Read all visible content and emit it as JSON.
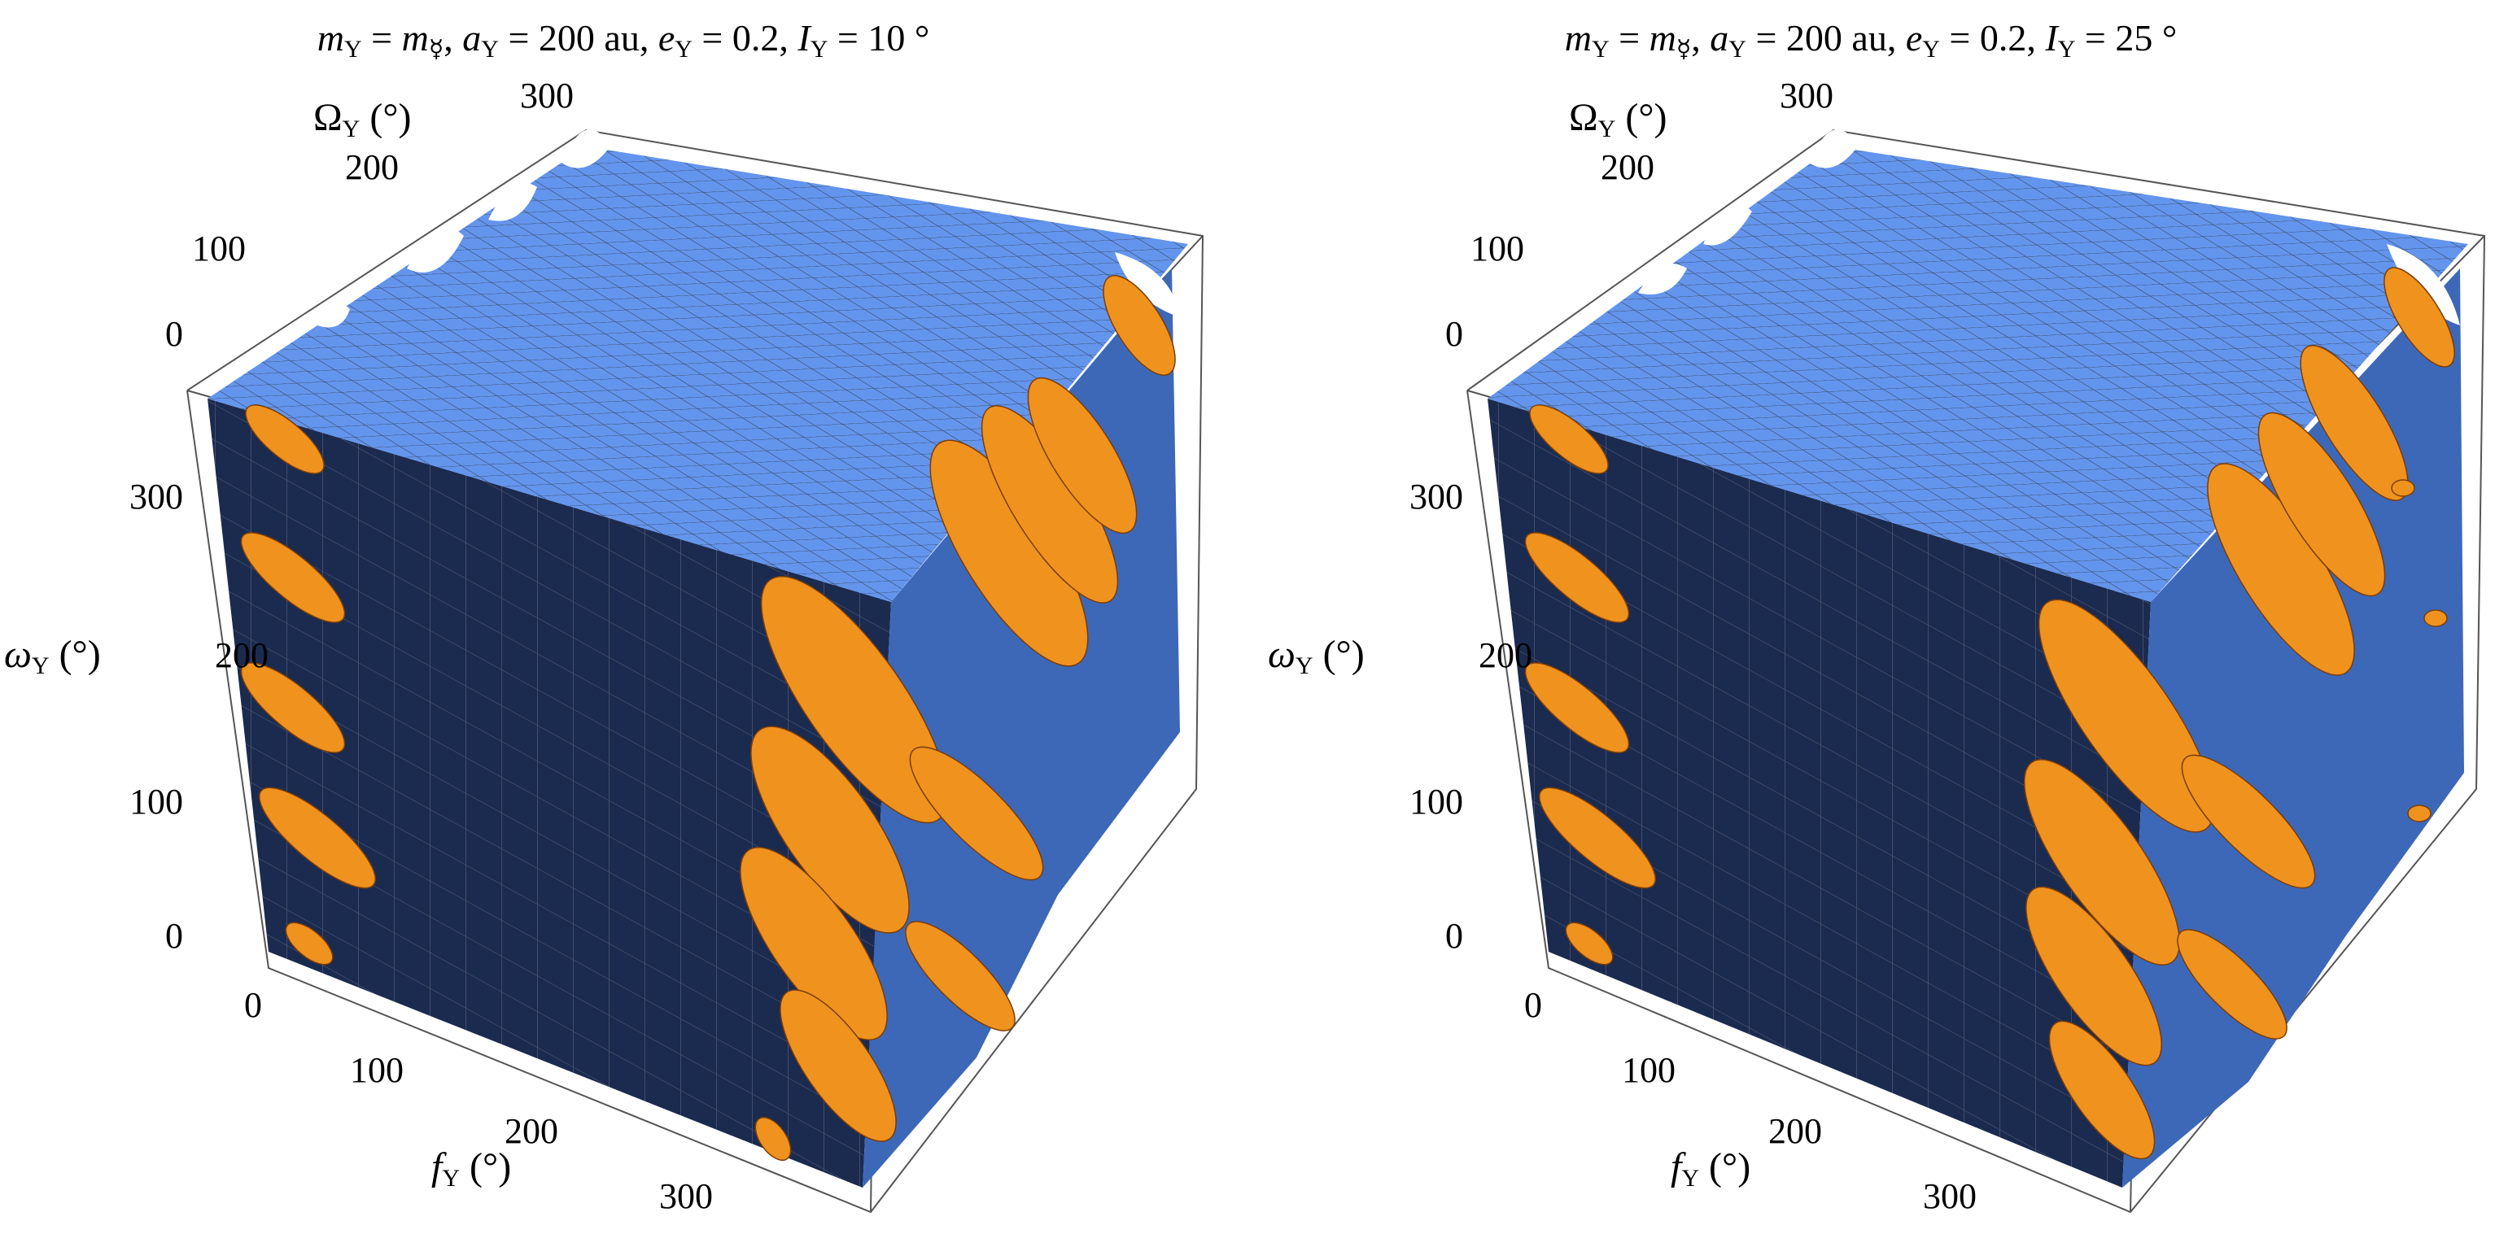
{
  "chart_data": [
    {
      "type": "3d-region",
      "title_parts": {
        "m": "m",
        "m_sub": "Y",
        "m_val": "m",
        "m_val_sub": "☿",
        "a": "a",
        "a_sub": "Y",
        "a_val": "200 au",
        "e": "e",
        "e_sub": "Y",
        "e_val": "0.2",
        "I": "I",
        "I_sub": "Y",
        "I_val": "10 °"
      },
      "axes": {
        "Omega": {
          "label": "Ω",
          "sub": "Y",
          "unit": "(°)",
          "ticks": [
            "0",
            "100",
            "200",
            "300"
          ],
          "range": [
            0,
            360
          ]
        },
        "omega": {
          "label": "ω",
          "sub": "Y",
          "unit": "(°)",
          "ticks": [
            "0",
            "100",
            "200",
            "300"
          ],
          "range": [
            0,
            360
          ]
        },
        "f": {
          "label": "f",
          "sub": "Y",
          "unit": "(°)",
          "ticks": [
            "0",
            "100",
            "200",
            "300"
          ],
          "range": [
            0,
            360
          ]
        }
      },
      "colors": {
        "top": "#6495ed",
        "side": "#1b2a4f",
        "cut": "#f0921e",
        "slope": "#3d68b8"
      }
    },
    {
      "type": "3d-region",
      "title_parts": {
        "m": "m",
        "m_sub": "Y",
        "m_val": "m",
        "m_val_sub": "☿",
        "a": "a",
        "a_sub": "Y",
        "a_val": "200 au",
        "e": "e",
        "e_sub": "Y",
        "e_val": "0.2",
        "I": "I",
        "I_sub": "Y",
        "I_val": "25 °"
      },
      "axes": {
        "Omega": {
          "label": "Ω",
          "sub": "Y",
          "unit": "(°)",
          "ticks": [
            "0",
            "100",
            "200",
            "300"
          ],
          "range": [
            0,
            360
          ]
        },
        "omega": {
          "label": "ω",
          "sub": "Y",
          "unit": "(°)",
          "ticks": [
            "0",
            "100",
            "200",
            "300"
          ],
          "range": [
            0,
            360
          ]
        },
        "f": {
          "label": "f",
          "sub": "Y",
          "unit": "(°)",
          "ticks": [
            "0",
            "100",
            "200",
            "300"
          ],
          "range": [
            0,
            360
          ]
        }
      },
      "colors": {
        "top": "#6495ed",
        "side": "#1b2a4f",
        "cut": "#f0921e",
        "slope": "#3d68b8"
      }
    }
  ]
}
